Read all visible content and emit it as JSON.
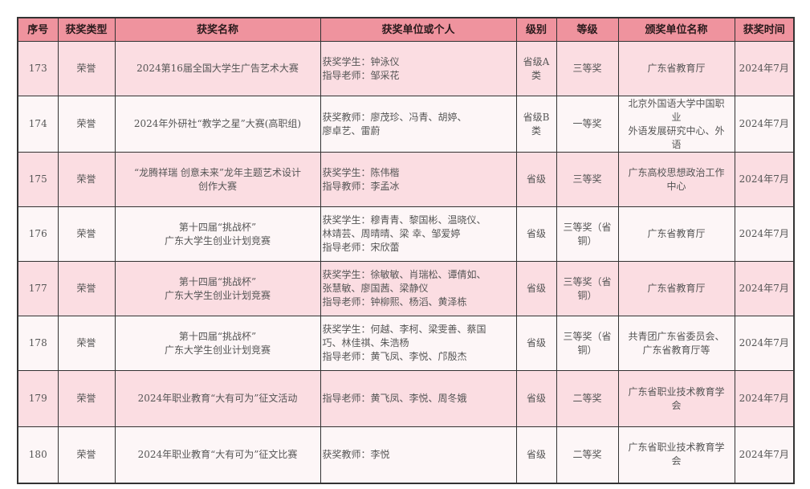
{
  "columns": [
    "序号",
    "获奖类型",
    "获奖名称",
    "获奖单位或个人",
    "级别",
    "等级",
    "颁奖单位名称",
    "获奖时间"
  ],
  "rows": [
    {
      "no": "173",
      "type": "荣誉",
      "name": "2024第16届全国大学生广告艺术大赛",
      "winner": "获奖学生：钟泳仪\n指导老师：邹采花",
      "level": "省级A\n类",
      "grade": "三等奖",
      "issuer": "广东省教育厅",
      "time": "2024年7月"
    },
    {
      "no": "174",
      "type": "荣誉",
      "name": "2024年外研社“教学之星”大赛(高职组)",
      "winner": "获奖教师：廖茂珍、冯青、胡婷、\n廖卓艺、雷蔚",
      "level": "省级B\n类",
      "grade": "一等奖",
      "issuer": "北京外国语大学中国职\n业\n外语发展研究中心、外\n语",
      "time": "2024年7月"
    },
    {
      "no": "175",
      "type": "荣誉",
      "name": "“龙腾祥瑞 创意未来”龙年主题艺术设计\n创作大赛",
      "winner": "获奖学生：陈伟楷\n指导教师：李孟冰",
      "level": "省级",
      "grade": "三等奖",
      "issuer": "广东高校思想政治工作\n中心",
      "time": "2024年7月"
    },
    {
      "no": "176",
      "type": "荣誉",
      "name": "第十四届“挑战杯”\n广东大学生创业计划竞赛",
      "winner": "获奖学生：穆青青、黎国彬、温晓仪、\n林靖芸、周晴晴、梁 幸、邹爱婷\n指导老师：宋欣蕾",
      "level": "省级",
      "grade": "三等奖（省\n铜）",
      "issuer": "广东省教育厅",
      "time": "2024年7月"
    },
    {
      "no": "177",
      "type": "荣誉",
      "name": "第十四届“挑战杯”\n广东大学生创业计划竞赛",
      "winner": "获奖学生：徐敏敏、肖瑞松、谭倩如、\n张慧敏、廖国茜、梁静仪\n指导老师：钟柳熙、杨滔、黄泽栋",
      "level": "省级",
      "grade": "三等奖（省\n铜）",
      "issuer": "广东省教育厅",
      "time": "2024年7月"
    },
    {
      "no": "178",
      "type": "荣誉",
      "name": "第十四届“挑战杯”\n广东大学生创业计划竞赛",
      "winner": "获奖学生：何越、李柯、梁雯善、蔡国\n巧、林佳祺、朱浩杨\n指导老师：黄飞凤、李悦、邝殷杰",
      "level": "省级",
      "grade": "三等奖（省\n铜）",
      "issuer": "共青团广东省委员会、\n广东省教育厅等",
      "time": "2024年7月"
    },
    {
      "no": "179",
      "type": "荣誉",
      "name": "2024年职业教育“大有可为”征文活动",
      "winner": "指导老师：黄飞凤、李悦、周冬娥",
      "level": "省级",
      "grade": "二等奖",
      "issuer": "广东省职业技术教育学\n会",
      "time": "2024年7月"
    },
    {
      "no": "180",
      "type": "荣誉",
      "name": "2024年职业教育“大有可为”征文比赛",
      "winner": "获奖教师：李悦",
      "level": "省级",
      "grade": "二等奖",
      "issuer": "广东省职业技术教育学\n会",
      "time": "2024年7月"
    }
  ]
}
